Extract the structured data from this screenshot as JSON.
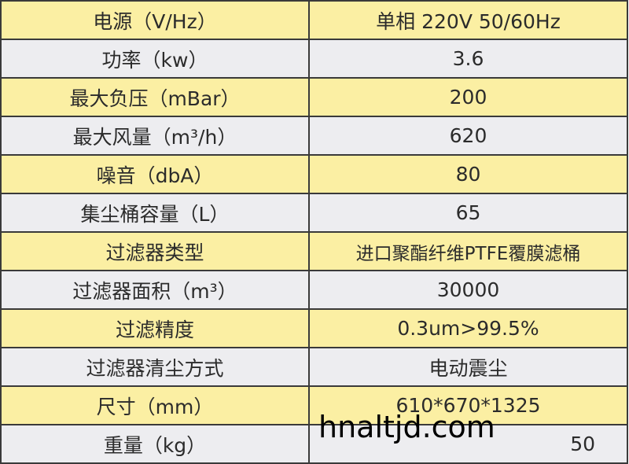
{
  "rows": [
    {
      "label": "电源（V/Hz）",
      "value": "单相 220V 50/60Hz"
    },
    {
      "label": "功率（kw）",
      "value": "3.6"
    },
    {
      "label": "最大负压（mBar）",
      "value": "200"
    },
    {
      "label": "最大风量（m³/h）",
      "value": "620"
    },
    {
      "label": "噪音（dbA）",
      "value": "80"
    },
    {
      "label": "集尘桶容量（L）",
      "value": "65"
    },
    {
      "label": "过滤器类型",
      "value": "进口聚酯纤维PTFE覆膜滤桶"
    },
    {
      "label": "过滤器面积（m³）",
      "value": "30000"
    },
    {
      "label": "过滤精度",
      "value": "0.3um>99.5%"
    },
    {
      "label": "过滤器清尘方式",
      "value": "电动震尘"
    },
    {
      "label": "尺寸（mm）",
      "value": "610*670*1325"
    },
    {
      "label": "重量（kg）",
      "value": "50"
    }
  ],
  "watermark": "hnaltjd.com",
  "colors": {
    "row_odd": "#fbefa3",
    "row_even": "#ededf0",
    "border": "#3a3a3a"
  }
}
